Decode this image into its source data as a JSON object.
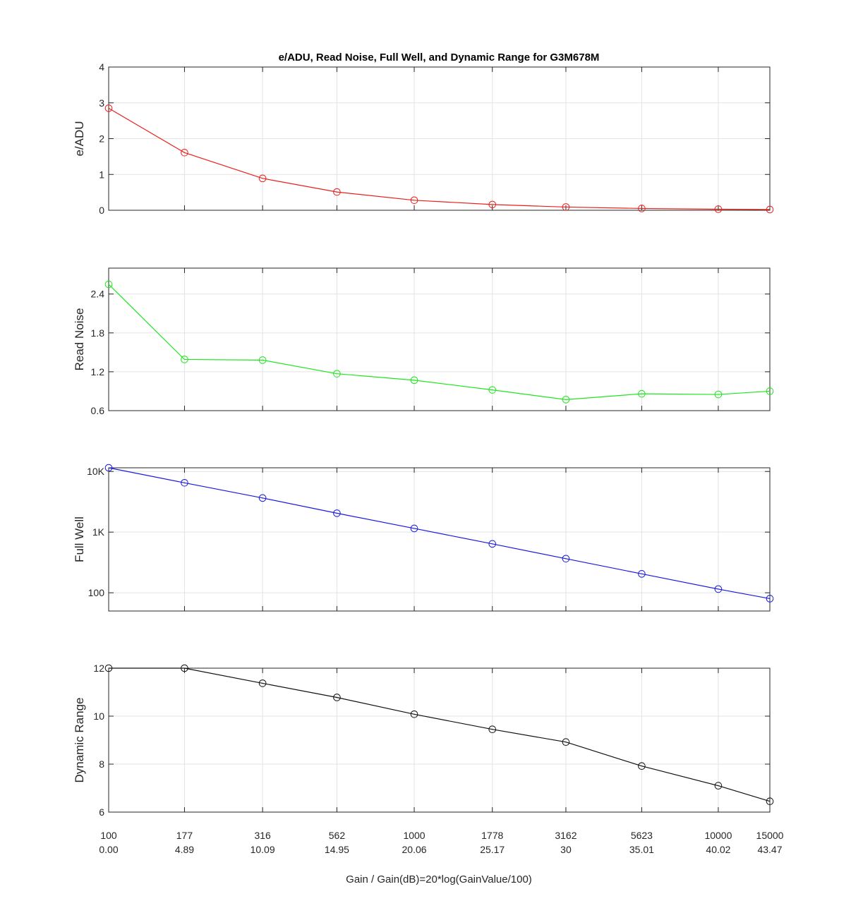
{
  "title": "e/ADU, Read Noise, Full Well, and Dynamic Range for G3M678M",
  "xlabel": "Gain / Gain(dB)=20*log(GainValue/100)",
  "chart_data": {
    "type": "line",
    "x_categories": [
      "100",
      "177",
      "316",
      "562",
      "1000",
      "1778",
      "3162",
      "5623",
      "10000",
      "15000"
    ],
    "x_categories_db": [
      "0.00",
      "4.89",
      "10.09",
      "14.95",
      "20.06",
      "25.17",
      "30",
      "35.01",
      "40.02",
      "43.47"
    ],
    "x_positions": [
      0,
      1,
      2.03,
      3.01,
      4.03,
      5.06,
      6.03,
      7.03,
      8.04,
      8.72
    ],
    "grid": true,
    "panels": [
      {
        "ylabel": "e/ADU",
        "scale": "linear",
        "ylim": [
          0,
          4
        ],
        "yticks": [
          0,
          1,
          2,
          3,
          4
        ],
        "ytick_labels": [
          "0",
          "1",
          "2",
          "3",
          "4"
        ],
        "color": "#e8201c",
        "values": [
          2.85,
          1.61,
          0.89,
          0.51,
          0.28,
          0.16,
          0.09,
          0.05,
          0.03,
          0.02
        ]
      },
      {
        "ylabel": "Read Noise",
        "scale": "linear",
        "ylim": [
          0.6,
          2.8
        ],
        "yticks": [
          0.6,
          1.2,
          1.8,
          2.4
        ],
        "ytick_labels": [
          "0.6",
          "1.2",
          "1.8",
          "2.4"
        ],
        "color": "#1ee61e",
        "values": [
          2.55,
          1.39,
          1.38,
          1.17,
          1.07,
          0.92,
          0.77,
          0.86,
          0.85,
          0.9
        ]
      },
      {
        "ylabel": "Full Well",
        "scale": "log",
        "ylim": [
          50,
          11500
        ],
        "yticks": [
          100,
          1000,
          10000
        ],
        "ytick_labels": [
          "100",
          "1K",
          "10K"
        ],
        "color": "#1a1ae0",
        "values": [
          11500,
          6500,
          3650,
          2050,
          1150,
          640,
          365,
          205,
          115,
          80
        ]
      },
      {
        "ylabel": "Dynamic Range",
        "scale": "linear",
        "ylim": [
          6,
          12
        ],
        "yticks": [
          6,
          8,
          10,
          12
        ],
        "ytick_labels": [
          "6",
          "8",
          "10",
          "12"
        ],
        "color": "#111111",
        "values": [
          12.0,
          12.0,
          11.37,
          10.78,
          10.08,
          9.45,
          8.92,
          7.92,
          7.1,
          6.45
        ]
      }
    ]
  }
}
